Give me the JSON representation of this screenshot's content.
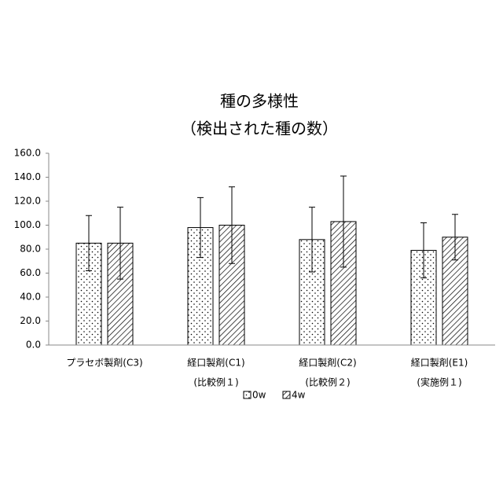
{
  "chart_data": {
    "type": "bar",
    "title": [
      "種の多様性",
      "（検出された種の数）"
    ],
    "categories": [
      [
        "プラセボ製剤(C3)"
      ],
      [
        "経口製剤(C1)",
        "(比較例１)"
      ],
      [
        "経口製剤(C2)",
        "(比較例２)"
      ],
      [
        "経口製剤(E1)",
        "(実施例１)"
      ]
    ],
    "series": [
      {
        "name": "0w",
        "color": "#000000",
        "values": [
          85,
          98,
          88,
          79
        ],
        "errors": [
          23,
          25,
          27,
          23
        ]
      },
      {
        "name": "4w",
        "color": "#000000",
        "values": [
          85,
          100,
          103,
          90
        ],
        "errors": [
          30,
          32,
          38,
          19
        ]
      }
    ],
    "ylim": [
      0,
      160
    ],
    "yticks": [
      {
        "value": 0,
        "label": "0.0"
      },
      {
        "value": 20,
        "label": "20.0"
      },
      {
        "value": 40,
        "label": "40.0"
      },
      {
        "value": 60,
        "label": "60.0"
      },
      {
        "value": 80,
        "label": "80.0"
      },
      {
        "value": 100,
        "label": "100.0"
      },
      {
        "value": 120,
        "label": "120.0"
      },
      {
        "value": 140,
        "label": "140.0"
      },
      {
        "value": 160,
        "label": "160.0"
      }
    ],
    "grid": false
  }
}
